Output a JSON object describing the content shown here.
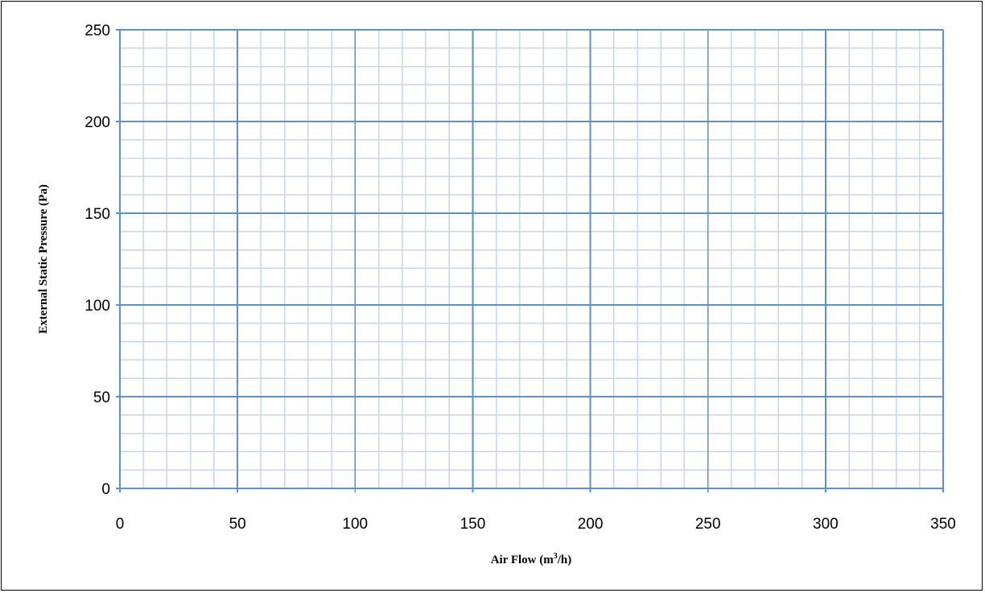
{
  "chart_data": {
    "type": "line",
    "title": "",
    "xlabel": "Air Flow (m",
    "xlabel_superscript": "3",
    "xlabel_suffix": "/h)",
    "ylabel": "External Static Pressure (Pa)",
    "xlim": [
      0,
      350
    ],
    "ylim": [
      0,
      250
    ],
    "x_major_ticks": [
      0,
      50,
      100,
      150,
      200,
      250,
      300,
      350
    ],
    "y_major_ticks": [
      0,
      50,
      100,
      150,
      200,
      250
    ],
    "x_minor_step": 10,
    "y_minor_step": 10,
    "grid": true,
    "series": [],
    "colors": {
      "major_grid": "#5b8fcf",
      "minor_grid": "#c5d6ee",
      "axis": "#5b8fcf",
      "frame": "#000000"
    }
  }
}
